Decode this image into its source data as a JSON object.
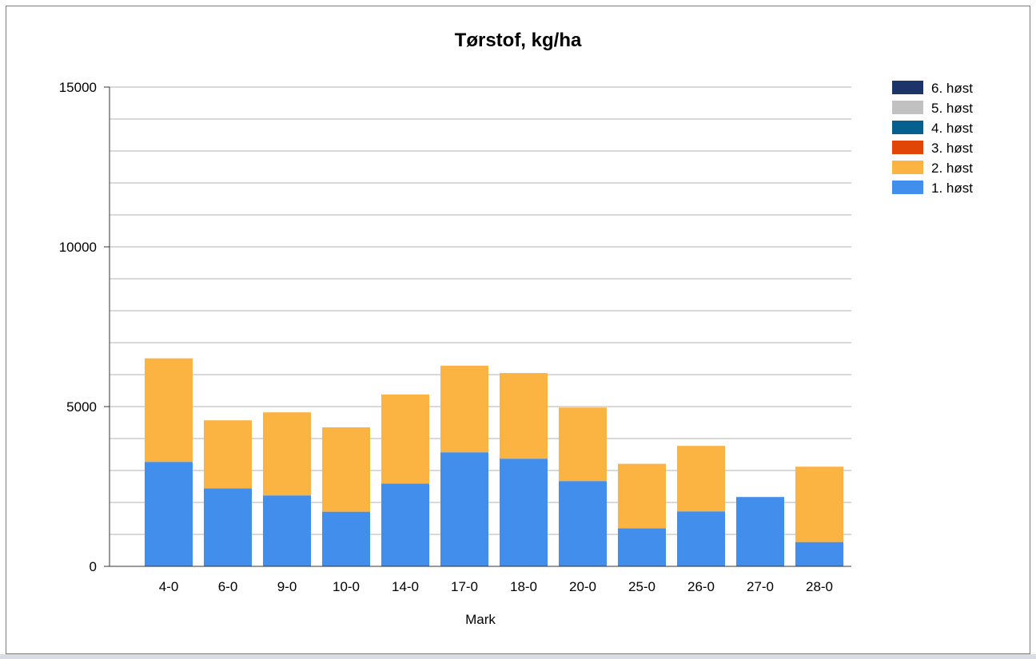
{
  "chart_data": {
    "type": "bar",
    "stacked": true,
    "title": "Tørstof, kg/ha",
    "xlabel": "Mark",
    "ylabel": "",
    "ylim": [
      0,
      15000
    ],
    "y_ticks": [
      "0",
      "5000",
      "10000",
      "15000"
    ],
    "grid": true,
    "legend_position": "right",
    "categories": [
      "4-0",
      "6-0",
      "9-0",
      "10-0",
      "14-0",
      "17-0",
      "18-0",
      "20-0",
      "25-0",
      "26-0",
      "27-0",
      "28-0"
    ],
    "series": [
      {
        "name": "1. høst",
        "color": "#418EEC",
        "values": [
          3270,
          2440,
          2220,
          1710,
          2590,
          3570,
          3370,
          2670,
          1190,
          1720,
          2170,
          760
        ]
      },
      {
        "name": "2. høst",
        "color": "#FBB442",
        "values": [
          3240,
          2130,
          2600,
          2640,
          2790,
          2710,
          2680,
          2300,
          2020,
          2050,
          0,
          2360
        ]
      },
      {
        "name": "3. høst",
        "color": "#E24607",
        "values": [
          0,
          0,
          0,
          0,
          0,
          0,
          0,
          0,
          0,
          0,
          0,
          0
        ]
      },
      {
        "name": "4. høst",
        "color": "#06608F",
        "values": [
          0,
          0,
          0,
          0,
          0,
          0,
          0,
          0,
          0,
          0,
          0,
          0
        ]
      },
      {
        "name": "5. høst",
        "color": "#C1C1C1",
        "values": [
          0,
          0,
          0,
          0,
          0,
          0,
          0,
          0,
          0,
          0,
          0,
          0
        ]
      },
      {
        "name": "6. høst",
        "color": "#1B3568",
        "values": [
          0,
          0,
          0,
          0,
          0,
          0,
          0,
          0,
          0,
          0,
          0,
          0
        ]
      }
    ]
  }
}
